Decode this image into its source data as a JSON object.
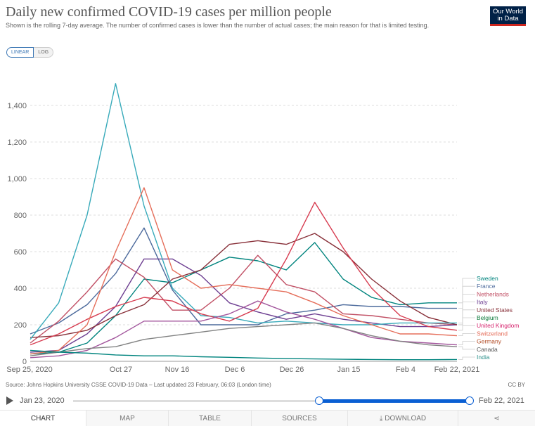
{
  "header": {
    "title": "Daily new confirmed COVID-19 cases per million people",
    "subtitle": "Shown is the rolling 7-day average. The number of confirmed cases is lower than the number of actual cases; the main reason for that is limited testing.",
    "logo_line1": "Our World",
    "logo_line2": "in Data"
  },
  "scale_toggle": {
    "linear": "LINEAR",
    "log": "LOG",
    "selected": "LINEAR"
  },
  "chart_data": {
    "type": "line",
    "title": "Daily new confirmed COVID-19 cases per million people",
    "ylim": [
      0,
      1600
    ],
    "yticks": [
      0,
      200,
      400,
      600,
      800,
      1000,
      1200,
      1400
    ],
    "ytick_labels": [
      "0",
      "200",
      "400",
      "600",
      "800",
      "1,000",
      "1,200",
      "1,400"
    ],
    "x_ticks": [
      "Sep 25, 2020",
      "Oct 27",
      "Nov 16",
      "Dec 6",
      "Dec 26",
      "Jan 15",
      "Feb 4",
      "Feb 22, 2021"
    ],
    "x": [
      "Sep 25",
      "Oct 5",
      "Oct 15",
      "Oct 27",
      "Nov 6",
      "Nov 16",
      "Nov 26",
      "Dec 6",
      "Dec 16",
      "Dec 26",
      "Jan 5",
      "Jan 15",
      "Jan 25",
      "Feb 4",
      "Feb 14",
      "Feb 22"
    ],
    "grid": true,
    "series": [
      {
        "name": "Sweden",
        "color": "#00847e",
        "values": [
          40,
          50,
          100,
          250,
          450,
          430,
          500,
          570,
          550,
          500,
          650,
          450,
          350,
          310,
          320,
          320
        ]
      },
      {
        "name": "France",
        "color": "#4c6a9c",
        "values": [
          150,
          210,
          310,
          480,
          730,
          390,
          200,
          200,
          200,
          260,
          280,
          310,
          300,
          300,
          290,
          290
        ]
      },
      {
        "name": "Netherlands",
        "color": "#c15065",
        "values": [
          100,
          220,
          380,
          560,
          460,
          280,
          280,
          400,
          580,
          420,
          380,
          260,
          250,
          230,
          210,
          200
        ]
      },
      {
        "name": "Italy",
        "color": "#6d3e91",
        "values": [
          50,
          60,
          150,
          300,
          560,
          560,
          470,
          320,
          270,
          230,
          260,
          230,
          210,
          190,
          190,
          200
        ]
      },
      {
        "name": "United States",
        "color": "#883039",
        "values": [
          130,
          140,
          170,
          250,
          310,
          450,
          500,
          640,
          660,
          640,
          700,
          600,
          450,
          330,
          240,
          200
        ]
      },
      {
        "name": "Belgium",
        "color": "#38aaba",
        "values": [
          120,
          320,
          800,
          1520,
          850,
          400,
          250,
          240,
          210,
          220,
          210,
          200,
          200,
          210,
          210,
          210
        ]
      },
      {
        "name": "United Kingdom",
        "color": "#d73c50",
        "values": [
          90,
          150,
          230,
          300,
          350,
          330,
          260,
          220,
          290,
          560,
          870,
          620,
          400,
          250,
          190,
          170
        ]
      },
      {
        "name": "Switzerland",
        "color": "#e56e5a",
        "values": [
          40,
          60,
          200,
          600,
          950,
          500,
          400,
          420,
          400,
          380,
          320,
          250,
          200,
          150,
          150,
          140
        ]
      },
      {
        "name": "Germany",
        "color": "#a2559c",
        "values": [
          20,
          30,
          60,
          130,
          220,
          220,
          220,
          260,
          330,
          270,
          230,
          180,
          130,
          110,
          100,
          90
        ]
      },
      {
        "name": "Canada",
        "color": "#818282",
        "values": [
          30,
          50,
          70,
          80,
          120,
          140,
          160,
          180,
          190,
          200,
          210,
          180,
          140,
          110,
          90,
          80
        ]
      },
      {
        "name": "India",
        "color": "#00847e",
        "values": [
          60,
          50,
          45,
          35,
          30,
          30,
          25,
          22,
          18,
          15,
          13,
          11,
          10,
          9,
          9,
          10
        ]
      }
    ],
    "legend_order": [
      "Sweden",
      "France",
      "Netherlands",
      "Italy",
      "United States",
      "Belgium",
      "United Kingdom",
      "Switzerland",
      "Germany",
      "Canada",
      "India"
    ],
    "legend_colors": [
      "#00847e",
      "#4c6a9c",
      "#c15065",
      "#6d3e91",
      "#883039",
      "#0f7a3c",
      "#d6246e",
      "#e56e5a",
      "#b14a23",
      "#555555",
      "#2a8f8a"
    ]
  },
  "footer": {
    "source": "Source: Johns Hopkins University CSSE COVID-19 Data – Last updated 23 February, 06:03 (London time)",
    "license": "CC BY"
  },
  "timeline": {
    "start_label": "Jan 23, 2020",
    "end_label": "Feb 22, 2021",
    "range_start_fraction": 0.62,
    "range_end_fraction": 1.0
  },
  "tabs": [
    {
      "label": "CHART",
      "active": true
    },
    {
      "label": "MAP",
      "active": false
    },
    {
      "label": "TABLE",
      "active": false
    },
    {
      "label": "SOURCES",
      "active": false
    },
    {
      "label": "DOWNLOAD",
      "active": false
    },
    {
      "label": "",
      "icon": "share-icon",
      "active": false
    }
  ]
}
